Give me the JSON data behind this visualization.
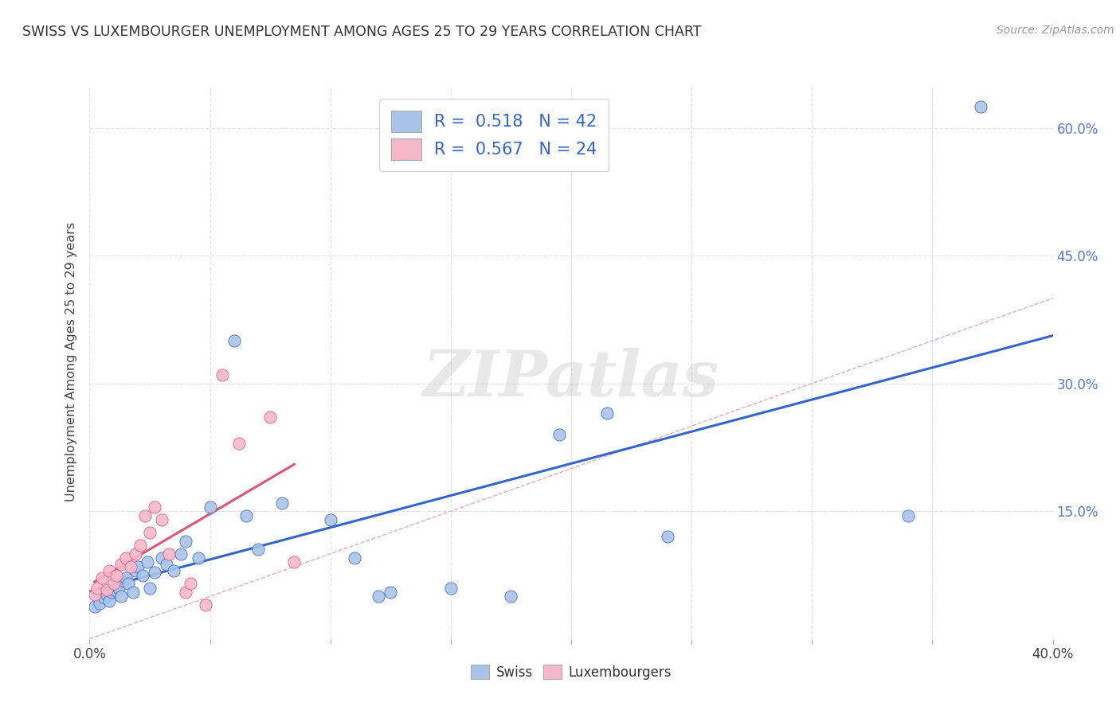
{
  "title": "SWISS VS LUXEMBOURGER UNEMPLOYMENT AMONG AGES 25 TO 29 YEARS CORRELATION CHART",
  "source": "Source: ZipAtlas.com",
  "ylabel": "Unemployment Among Ages 25 to 29 years",
  "xlim": [
    0.0,
    0.4
  ],
  "ylim": [
    0.0,
    0.65
  ],
  "xticks": [
    0.0,
    0.05,
    0.1,
    0.15,
    0.2,
    0.25,
    0.3,
    0.35,
    0.4
  ],
  "yticks": [
    0.0,
    0.15,
    0.3,
    0.45,
    0.6
  ],
  "legend_R_swiss": "0.518",
  "legend_N_swiss": "42",
  "legend_R_lux": "0.567",
  "legend_N_lux": "24",
  "swiss_color": "#aac4e8",
  "lux_color": "#f5b8c8",
  "trend_swiss_color": "#3366cc",
  "trend_lux_color": "#dd5577",
  "ref_line_color": "#e8aabb",
  "watermark_color": "#d8d8d8",
  "swiss_x": [
    0.002,
    0.004,
    0.006,
    0.007,
    0.008,
    0.009,
    0.01,
    0.011,
    0.012,
    0.013,
    0.014,
    0.015,
    0.016,
    0.018,
    0.019,
    0.02,
    0.022,
    0.024,
    0.025,
    0.027,
    0.03,
    0.032,
    0.035,
    0.038,
    0.04,
    0.045,
    0.05,
    0.06,
    0.065,
    0.07,
    0.08,
    0.1,
    0.11,
    0.12,
    0.125,
    0.15,
    0.175,
    0.195,
    0.215,
    0.24,
    0.34,
    0.37
  ],
  "swiss_y": [
    0.038,
    0.042,
    0.048,
    0.052,
    0.045,
    0.055,
    0.058,
    0.062,
    0.06,
    0.05,
    0.068,
    0.072,
    0.065,
    0.055,
    0.08,
    0.085,
    0.075,
    0.09,
    0.06,
    0.078,
    0.095,
    0.088,
    0.08,
    0.1,
    0.115,
    0.095,
    0.155,
    0.35,
    0.145,
    0.105,
    0.16,
    0.14,
    0.095,
    0.05,
    0.055,
    0.06,
    0.05,
    0.24,
    0.265,
    0.12,
    0.145,
    0.625
  ],
  "lux_x": [
    0.002,
    0.003,
    0.005,
    0.007,
    0.008,
    0.01,
    0.011,
    0.013,
    0.015,
    0.017,
    0.019,
    0.021,
    0.023,
    0.025,
    0.027,
    0.03,
    0.033,
    0.04,
    0.042,
    0.048,
    0.055,
    0.062,
    0.075,
    0.085
  ],
  "lux_y": [
    0.052,
    0.06,
    0.072,
    0.058,
    0.08,
    0.065,
    0.075,
    0.088,
    0.095,
    0.085,
    0.1,
    0.11,
    0.145,
    0.125,
    0.155,
    0.14,
    0.1,
    0.055,
    0.065,
    0.04,
    0.31,
    0.23,
    0.26,
    0.09
  ],
  "background_color": "#ffffff",
  "grid_color": "#dddddd"
}
